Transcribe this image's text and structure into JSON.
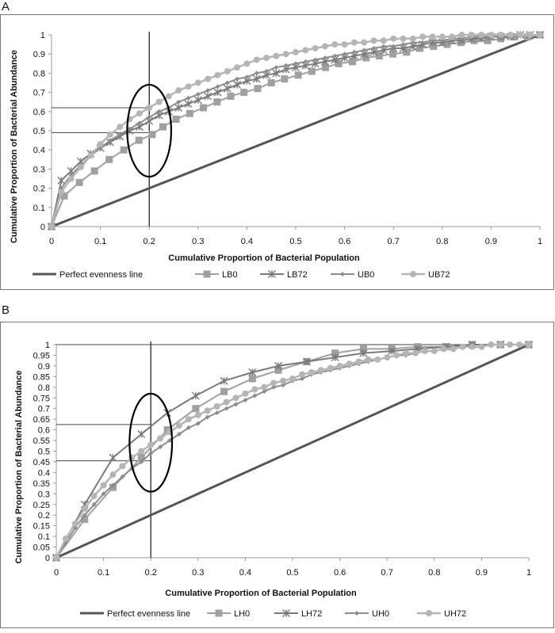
{
  "figure": {
    "panels": [
      "A",
      "B"
    ]
  },
  "chart_data": [
    {
      "panel": "A",
      "type": "line",
      "title": "",
      "xlabel": "Cumulative Proportion of Bacterial Population",
      "ylabel": "Cumulative Proportion of Bacterial Abundance",
      "xlim": [
        0,
        1
      ],
      "ylim": [
        0,
        1
      ],
      "x_ticks": [
        "0",
        "0.1",
        "0.2",
        "0.3",
        "0.4",
        "0.5",
        "0.6",
        "0.7",
        "0.8",
        "0.9",
        "1"
      ],
      "y_ticks": [
        "0",
        "0.1",
        "0.2",
        "0.3",
        "0.4",
        "0.5",
        "0.6",
        "0.7",
        "0.8",
        "0.9",
        "1"
      ],
      "grid": false,
      "legend_position": "bottom",
      "reference_lines": {
        "vertical_x": 0.2,
        "horizontal_y": [
          0.62,
          0.49
        ]
      },
      "highlight_ellipse": {
        "cx": 0.2,
        "cy": 0.5,
        "rx": 0.045,
        "ry": 0.24
      },
      "series": [
        {
          "name": "Perfect evenness line",
          "color": "#555555",
          "marker": "none",
          "width": 3,
          "x": [
            0,
            1
          ],
          "y": [
            0,
            1
          ]
        },
        {
          "name": "LB0",
          "color": "#a0a0a0",
          "marker": "square",
          "width": 2,
          "x": [
            0,
            0.026,
            0.057,
            0.088,
            0.118,
            0.148,
            0.179,
            0.206,
            0.228,
            0.255,
            0.283,
            0.311,
            0.339,
            0.367,
            0.394,
            0.422,
            0.45,
            0.477,
            0.505,
            0.533,
            0.561,
            0.588,
            0.616,
            0.644,
            0.671,
            0.699,
            0.727,
            0.754,
            0.782,
            0.81,
            0.838,
            0.865,
            0.893,
            0.92,
            0.948,
            0.975,
            1
          ],
          "y": [
            0,
            0.16,
            0.23,
            0.29,
            0.35,
            0.4,
            0.45,
            0.48,
            0.52,
            0.56,
            0.59,
            0.62,
            0.65,
            0.68,
            0.7,
            0.72,
            0.75,
            0.77,
            0.79,
            0.81,
            0.83,
            0.85,
            0.86,
            0.88,
            0.89,
            0.9,
            0.91,
            0.93,
            0.94,
            0.95,
            0.96,
            0.97,
            0.97,
            0.98,
            0.99,
            0.99,
            1
          ]
        },
        {
          "name": "LB72",
          "color": "#7a7a7a",
          "marker": "star",
          "width": 2,
          "x": [
            0,
            0.02,
            0.04,
            0.06,
            0.08,
            0.1,
            0.12,
            0.14,
            0.16,
            0.18,
            0.2,
            0.22,
            0.24,
            0.26,
            0.28,
            0.3,
            0.32,
            0.34,
            0.36,
            0.38,
            0.4,
            0.42,
            0.44,
            0.46,
            0.48,
            0.5,
            0.52,
            0.54,
            0.56,
            0.58,
            0.6,
            0.62,
            0.64,
            0.66,
            0.68,
            0.7,
            0.72,
            0.74,
            0.76,
            0.78,
            0.8,
            0.82,
            0.84,
            0.86,
            0.88,
            0.9,
            0.92,
            0.94,
            0.96,
            0.98,
            1
          ],
          "y": [
            0,
            0.24,
            0.29,
            0.34,
            0.38,
            0.41,
            0.44,
            0.47,
            0.5,
            0.52,
            0.55,
            0.58,
            0.6,
            0.62,
            0.64,
            0.66,
            0.68,
            0.7,
            0.72,
            0.74,
            0.76,
            0.77,
            0.79,
            0.8,
            0.82,
            0.83,
            0.84,
            0.85,
            0.86,
            0.87,
            0.88,
            0.89,
            0.9,
            0.91,
            0.92,
            0.93,
            0.93,
            0.94,
            0.95,
            0.96,
            0.96,
            0.97,
            0.97,
            0.98,
            0.98,
            0.99,
            0.99,
            0.99,
            1,
            1,
            1
          ]
        },
        {
          "name": "UB0",
          "color": "#8c8c8c",
          "marker": "diamond",
          "width": 2,
          "x": [
            0,
            0.02,
            0.04,
            0.06,
            0.08,
            0.1,
            0.12,
            0.14,
            0.16,
            0.18,
            0.2,
            0.22,
            0.24,
            0.26,
            0.28,
            0.3,
            0.32,
            0.34,
            0.36,
            0.38,
            0.4,
            0.42,
            0.44,
            0.46,
            0.48,
            0.5,
            0.52,
            0.54,
            0.56,
            0.58,
            0.6,
            0.62,
            0.64,
            0.66,
            0.68,
            0.7,
            0.72,
            0.74,
            0.76,
            0.78,
            0.8,
            0.82,
            0.84,
            0.86,
            0.88,
            0.9,
            0.92,
            0.94,
            0.96,
            0.98,
            1
          ],
          "y": [
            0,
            0.2,
            0.27,
            0.32,
            0.37,
            0.41,
            0.45,
            0.48,
            0.51,
            0.54,
            0.57,
            0.6,
            0.62,
            0.65,
            0.67,
            0.69,
            0.71,
            0.73,
            0.75,
            0.77,
            0.78,
            0.8,
            0.81,
            0.83,
            0.84,
            0.85,
            0.86,
            0.87,
            0.88,
            0.89,
            0.9,
            0.91,
            0.92,
            0.93,
            0.94,
            0.94,
            0.95,
            0.96,
            0.96,
            0.97,
            0.97,
            0.98,
            0.98,
            0.99,
            0.99,
            0.99,
            1,
            1,
            1,
            1,
            1
          ]
        },
        {
          "name": "UB72",
          "color": "#b5b5b5",
          "marker": "circle",
          "width": 2.5,
          "x": [
            0,
            0.02,
            0.04,
            0.06,
            0.08,
            0.1,
            0.12,
            0.14,
            0.16,
            0.18,
            0.2,
            0.22,
            0.24,
            0.26,
            0.28,
            0.3,
            0.32,
            0.34,
            0.36,
            0.38,
            0.4,
            0.42,
            0.44,
            0.46,
            0.48,
            0.5,
            0.52,
            0.54,
            0.56,
            0.58,
            0.6,
            0.62,
            0.64,
            0.66,
            0.68,
            0.7,
            0.72,
            0.74,
            0.76,
            0.78,
            0.8,
            0.82,
            0.84,
            0.86,
            0.88,
            0.9,
            0.92,
            0.94,
            0.96,
            0.98,
            1
          ],
          "y": [
            0,
            0.18,
            0.25,
            0.31,
            0.37,
            0.43,
            0.48,
            0.52,
            0.56,
            0.59,
            0.62,
            0.65,
            0.68,
            0.71,
            0.73,
            0.75,
            0.77,
            0.79,
            0.81,
            0.83,
            0.85,
            0.87,
            0.88,
            0.89,
            0.9,
            0.91,
            0.92,
            0.93,
            0.94,
            0.95,
            0.95,
            0.96,
            0.96,
            0.97,
            0.97,
            0.98,
            0.98,
            0.98,
            0.99,
            0.99,
            0.99,
            0.99,
            1,
            1,
            1,
            1,
            1,
            1,
            1,
            1,
            1
          ]
        }
      ]
    },
    {
      "panel": "B",
      "type": "line",
      "title": "",
      "xlabel": "Cumulative Proportion of Bacterial Population",
      "ylabel": "Cumulative Proportion of Bacterial Abundance",
      "xlim": [
        0,
        1
      ],
      "ylim": [
        0,
        1
      ],
      "x_ticks": [
        "0",
        "0.1",
        "0.2",
        "0.3",
        "0.4",
        "0.5",
        "0.6",
        "0.7",
        "0.8",
        "0.9",
        "1"
      ],
      "y_ticks": [
        "0",
        "0.05",
        "0.1",
        "0.15",
        "0.2",
        "0.25",
        "0.3",
        "0.35",
        "0.4",
        "0.45",
        "0.5",
        "0.55",
        "0.6",
        "0.65",
        "0.7",
        "0.75",
        "0.8",
        "0.85",
        "0.9",
        "0.95",
        "1"
      ],
      "grid": false,
      "legend_position": "bottom",
      "reference_lines": {
        "vertical_x": 0.2,
        "horizontal_y": [
          1.0,
          0.625,
          0.455
        ]
      },
      "highlight_ellipse": {
        "cx": 0.2,
        "cy": 0.54,
        "rx": 0.045,
        "ry": 0.23
      },
      "series": [
        {
          "name": "Perfect evenness line",
          "color": "#555555",
          "marker": "none",
          "width": 3,
          "x": [
            0,
            1
          ],
          "y": [
            0,
            1
          ]
        },
        {
          "name": "LH0",
          "color": "#a0a0a0",
          "marker": "square",
          "width": 2,
          "x": [
            0,
            0.06,
            0.12,
            0.18,
            0.235,
            0.295,
            0.355,
            0.415,
            0.47,
            0.53,
            0.59,
            0.65,
            0.71,
            0.765,
            0.825,
            0.88,
            0.94,
            1
          ],
          "y": [
            0,
            0.18,
            0.33,
            0.47,
            0.6,
            0.7,
            0.78,
            0.84,
            0.88,
            0.92,
            0.96,
            0.98,
            0.98,
            0.99,
            0.99,
            1,
            1,
            1
          ]
        },
        {
          "name": "LH72",
          "color": "#7a7a7a",
          "marker": "star",
          "width": 2,
          "x": [
            0,
            0.06,
            0.12,
            0.18,
            0.235,
            0.295,
            0.355,
            0.415,
            0.47,
            0.53,
            0.59,
            0.65,
            0.71,
            0.765,
            0.825,
            0.88,
            0.94,
            1
          ],
          "y": [
            0,
            0.25,
            0.47,
            0.58,
            0.68,
            0.76,
            0.83,
            0.87,
            0.9,
            0.92,
            0.94,
            0.96,
            0.97,
            0.98,
            0.99,
            1,
            1,
            1
          ]
        },
        {
          "name": "UH0",
          "color": "#8c8c8c",
          "marker": "diamond",
          "width": 2,
          "x": [
            0,
            0.02,
            0.04,
            0.06,
            0.08,
            0.1,
            0.12,
            0.14,
            0.16,
            0.18,
            0.2,
            0.22,
            0.24,
            0.26,
            0.28,
            0.3,
            0.32,
            0.34,
            0.36,
            0.38,
            0.4,
            0.42,
            0.44,
            0.46,
            0.48,
            0.5,
            0.52,
            0.54,
            0.56,
            0.58,
            0.6,
            0.62,
            0.64,
            0.66,
            0.68,
            0.7,
            0.72,
            0.74,
            0.76,
            0.78,
            0.8,
            0.82,
            0.84,
            0.86,
            0.88,
            0.9,
            0.92,
            0.94,
            0.96,
            0.98,
            1
          ],
          "y": [
            0,
            0.07,
            0.14,
            0.2,
            0.25,
            0.3,
            0.34,
            0.38,
            0.42,
            0.45,
            0.49,
            0.52,
            0.55,
            0.58,
            0.61,
            0.63,
            0.66,
            0.68,
            0.7,
            0.72,
            0.74,
            0.76,
            0.78,
            0.8,
            0.81,
            0.83,
            0.84,
            0.86,
            0.87,
            0.88,
            0.89,
            0.9,
            0.91,
            0.92,
            0.93,
            0.94,
            0.95,
            0.95,
            0.96,
            0.97,
            0.97,
            0.98,
            0.98,
            0.99,
            0.99,
            0.99,
            1,
            1,
            1,
            1,
            1
          ]
        },
        {
          "name": "UH72",
          "color": "#b5b5b5",
          "marker": "circle",
          "width": 2.5,
          "x": [
            0,
            0.02,
            0.04,
            0.06,
            0.08,
            0.1,
            0.12,
            0.14,
            0.16,
            0.18,
            0.2,
            0.22,
            0.24,
            0.26,
            0.28,
            0.3,
            0.32,
            0.34,
            0.36,
            0.38,
            0.4,
            0.42,
            0.44,
            0.46,
            0.48,
            0.5,
            0.52,
            0.54,
            0.56,
            0.58,
            0.6,
            0.62,
            0.64,
            0.66,
            0.68,
            0.7,
            0.72,
            0.74,
            0.76,
            0.78,
            0.8,
            0.82,
            0.84,
            0.86,
            0.88,
            0.9,
            0.92,
            0.94,
            0.96,
            0.98,
            1
          ],
          "y": [
            0,
            0.09,
            0.16,
            0.23,
            0.29,
            0.34,
            0.39,
            0.43,
            0.47,
            0.5,
            0.53,
            0.56,
            0.59,
            0.62,
            0.65,
            0.67,
            0.69,
            0.71,
            0.73,
            0.75,
            0.77,
            0.79,
            0.8,
            0.82,
            0.83,
            0.84,
            0.86,
            0.87,
            0.88,
            0.89,
            0.9,
            0.91,
            0.92,
            0.93,
            0.93,
            0.94,
            0.95,
            0.96,
            0.96,
            0.97,
            0.97,
            0.98,
            0.98,
            0.99,
            0.99,
            0.99,
            1,
            1,
            1,
            1,
            1
          ]
        }
      ]
    }
  ]
}
